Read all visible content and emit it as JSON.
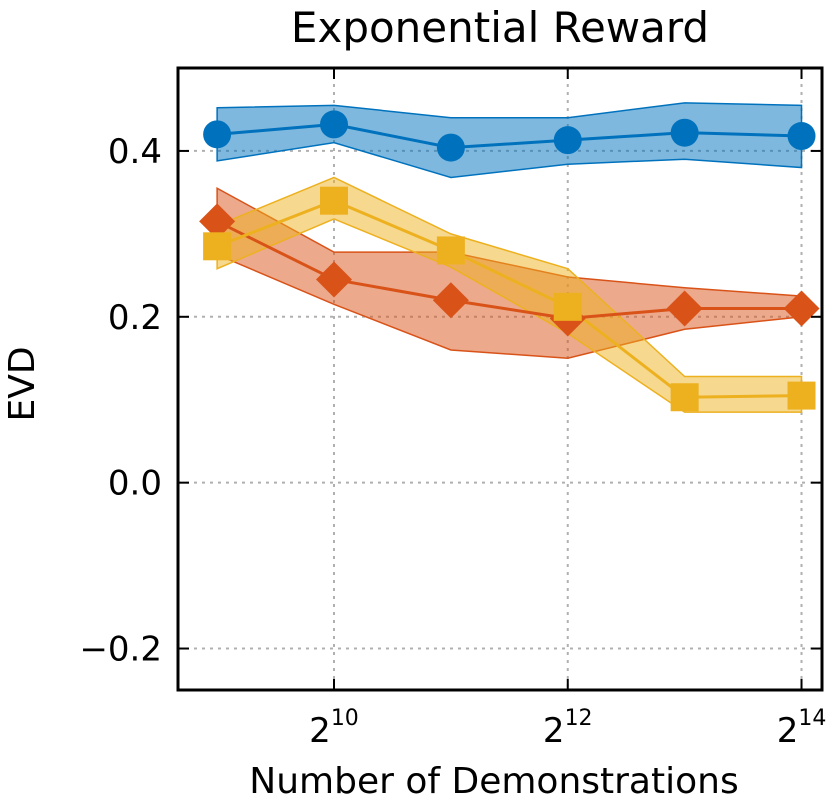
{
  "chart_data": {
    "type": "line",
    "title": "Exponential Reward",
    "xlabel": "Number of Demonstrations",
    "ylabel": "EVD",
    "x_scale": "log2",
    "x": [
      512,
      1024,
      2048,
      4096,
      8192,
      16384
    ],
    "xlim": [
      406,
      18500
    ],
    "ylim": [
      -0.25,
      0.5
    ],
    "x_ticks": [
      {
        "value": 1024,
        "base": "2",
        "exp": "10"
      },
      {
        "value": 4096,
        "base": "2",
        "exp": "12"
      },
      {
        "value": 16384,
        "base": "2",
        "exp": "14"
      }
    ],
    "y_ticks": [
      {
        "value": -0.2,
        "label": "−0.2"
      },
      {
        "value": 0.0,
        "label": "0.0"
      },
      {
        "value": 0.2,
        "label": "0.2"
      },
      {
        "value": 0.4,
        "label": "0.4"
      }
    ],
    "grid": true,
    "legend": "none",
    "series": [
      {
        "color": "#0072bd",
        "fill": "#0072bd",
        "marker": "circle",
        "values": [
          0.42,
          0.432,
          0.404,
          0.413,
          0.422,
          0.418
        ],
        "lower": [
          0.388,
          0.41,
          0.368,
          0.384,
          0.39,
          0.38
        ],
        "upper": [
          0.452,
          0.455,
          0.44,
          0.44,
          0.458,
          0.455
        ]
      },
      {
        "color": "#d95319",
        "fill": "#d95319",
        "marker": "diamond",
        "values": [
          0.315,
          0.245,
          0.22,
          0.198,
          0.21,
          0.21
        ],
        "lower": [
          0.275,
          0.215,
          0.16,
          0.15,
          0.185,
          0.2
        ],
        "upper": [
          0.355,
          0.278,
          0.278,
          0.248,
          0.235,
          0.225
        ]
      },
      {
        "color": "#edb120",
        "fill": "#edb120",
        "marker": "square",
        "values": [
          0.285,
          0.34,
          0.28,
          0.212,
          0.103,
          0.105
        ],
        "lower": [
          0.258,
          0.318,
          0.26,
          0.18,
          0.085,
          0.085
        ],
        "upper": [
          0.31,
          0.368,
          0.3,
          0.258,
          0.128,
          0.128
        ]
      }
    ]
  }
}
